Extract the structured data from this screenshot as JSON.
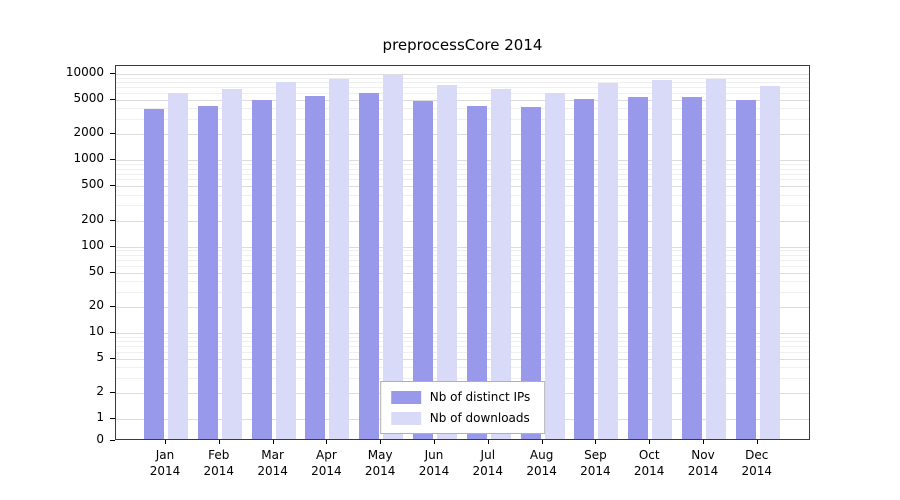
{
  "title": "preprocessCore 2014",
  "colors": {
    "ips_bar": "#9999ec",
    "downloads_bar": "#d9d9f8",
    "grid_major": "#dcdcdc",
    "grid_minor": "#efefef",
    "axis": "#3a3a3a",
    "text": "#000000"
  },
  "legend": {
    "items": [
      {
        "label": "Nb of distinct IPs",
        "series": "ips"
      },
      {
        "label": "Nb of downloads",
        "series": "downloads"
      }
    ]
  },
  "x_axis": {
    "months": [
      "Jan",
      "Feb",
      "Mar",
      "Apr",
      "May",
      "Jun",
      "Jul",
      "Aug",
      "Sep",
      "Oct",
      "Nov",
      "Dec"
    ],
    "year": "2014"
  },
  "y_axis": {
    "scale": "log",
    "tick_labels": [
      "0",
      "1",
      "2",
      "5",
      "10",
      "20",
      "50",
      "100",
      "200",
      "500",
      "1000",
      "2000",
      "5000",
      "10000"
    ],
    "ticks": [
      0,
      1,
      2,
      5,
      10,
      20,
      50,
      100,
      200,
      500,
      1000,
      2000,
      5000,
      10000
    ]
  },
  "chart_data": {
    "type": "bar",
    "title": "preprocessCore 2014",
    "categories": [
      "Jan 2014",
      "Feb 2014",
      "Mar 2014",
      "Apr 2014",
      "May 2014",
      "Jun 2014",
      "Jul 2014",
      "Aug 2014",
      "Sep 2014",
      "Oct 2014",
      "Nov 2014",
      "Dec 2014"
    ],
    "series": [
      {
        "name": "Nb of distinct IPs",
        "values": [
          3700,
          4050,
          4750,
          5300,
          5750,
          4650,
          4050,
          3950,
          4850,
          5100,
          5200,
          4750
        ]
      },
      {
        "name": "Nb of downloads",
        "values": [
          5750,
          6400,
          7600,
          8200,
          9200,
          7000,
          6300,
          5750,
          7500,
          8000,
          8200,
          6900
        ]
      }
    ],
    "xlabel": "",
    "ylabel": "",
    "ylim": [
      0,
      10000
    ],
    "yscale": "log",
    "grid": true,
    "legend_position": "lower center inside"
  }
}
